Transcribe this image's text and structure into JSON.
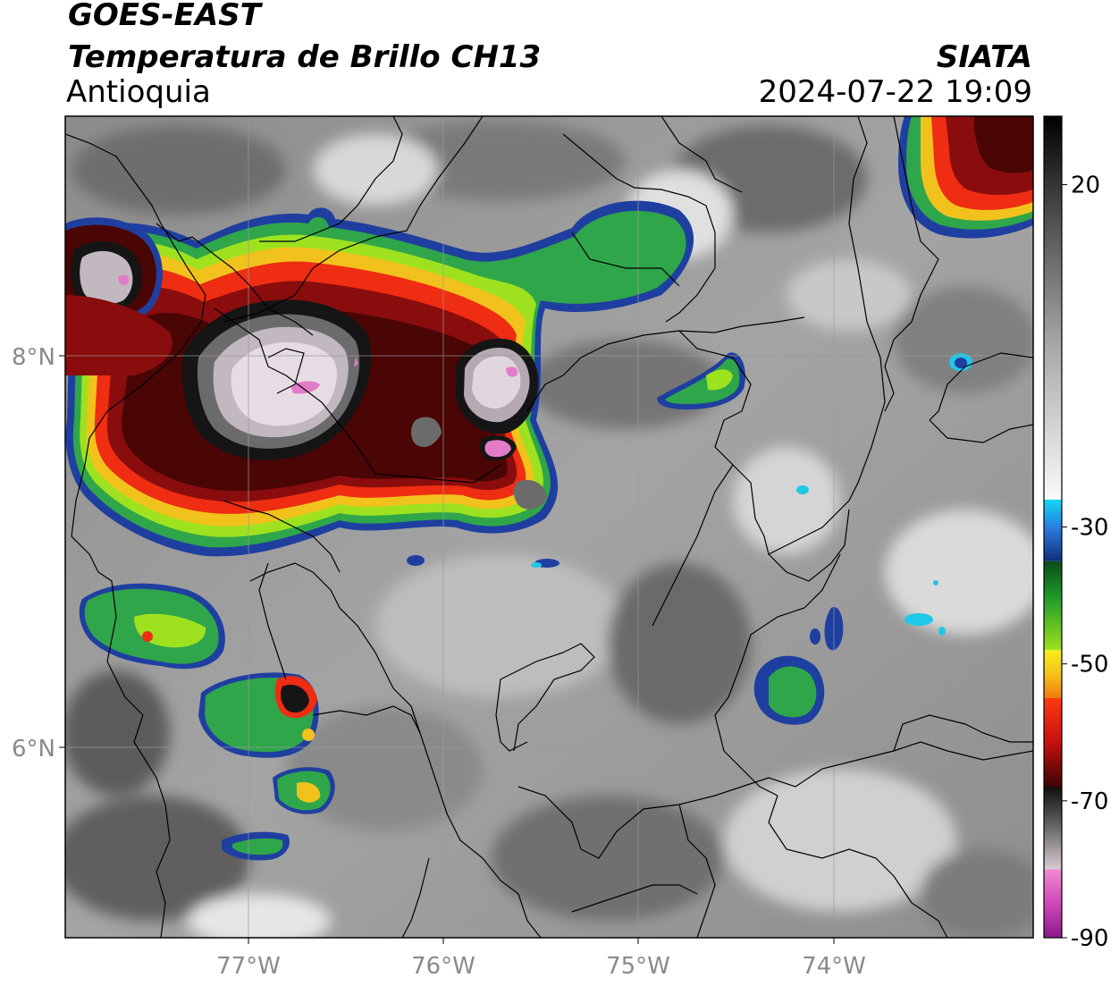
{
  "header": {
    "satellite": "GOES-EAST",
    "product": "Temperatura de Brillo CH13",
    "region": "Antioquia",
    "agency": "SIATA",
    "datetime": "2024-07-22 19:09"
  },
  "map": {
    "lon_labels": [
      "77°W",
      "76°W",
      "75°W",
      "74°W"
    ],
    "lat_labels": [
      "8°N",
      "6°N"
    ],
    "extent": {
      "lon_min": -77.95,
      "lon_max": -73.05,
      "lat_min": 4.95,
      "lat_max": 9.2
    },
    "colors": {
      "frame": "#000000",
      "grid": "#9a9a9a",
      "borders": "#000000"
    }
  },
  "colorbar": {
    "tick_labels": [
      "20",
      "-30",
      "-50",
      "-70",
      "-90"
    ],
    "range": [
      -90,
      30
    ],
    "segments": [
      {
        "from": 30,
        "to": -26,
        "type": "gray"
      },
      {
        "from": -26,
        "to": -35,
        "type": "blue"
      },
      {
        "from": -35,
        "to": -48,
        "type": "green"
      },
      {
        "from": -48,
        "to": -55,
        "type": "yellow-orange"
      },
      {
        "from": -55,
        "to": -68,
        "type": "red"
      },
      {
        "from": -68,
        "to": -80,
        "type": "dark-gray"
      },
      {
        "from": -80,
        "to": -90,
        "type": "magenta"
      }
    ]
  }
}
